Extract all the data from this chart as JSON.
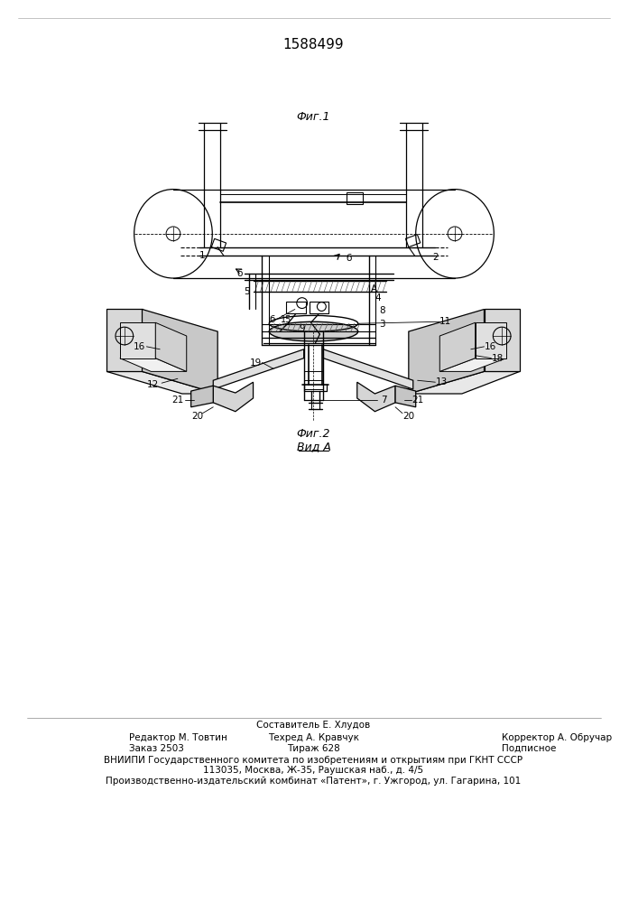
{
  "patent_number": "1588499",
  "fig1_caption": "Фиг.1",
  "fig2_caption": "Фиг.2",
  "view_label": "Вид А",
  "footer_line1": "Составитель Е. Хлудов",
  "footer_line2_left": "Редактор М. Товтин",
  "footer_line2_mid": "Техред А. Кравчук",
  "footer_line2_right": "Корректор А. Обручар",
  "footer_line3_left": "Заказ 2503",
  "footer_line3_mid": "Тираж 628",
  "footer_line3_right": "Подписное",
  "footer_line4": "ВНИИПИ Государственного комитета по изобретениям и открытиям при ГКНТ СССР",
  "footer_line5": "113035, Москва, Ж-35, Раушская наб., д. 4/5",
  "footer_line6": "Производственно-издательский комбинат «Патент», г. Ужгород, ул. Гагарина, 101",
  "bg_color": "#ffffff",
  "line_color": "#000000",
  "text_color": "#000000"
}
